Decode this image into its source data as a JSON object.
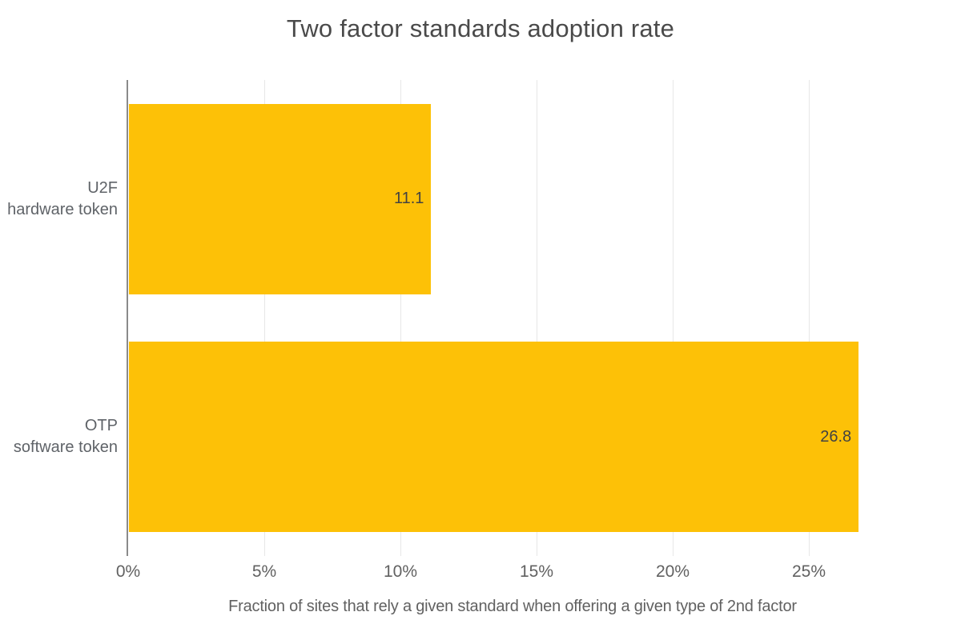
{
  "chart_data": {
    "type": "bar",
    "orientation": "horizontal",
    "title": "Two factor standards adoption rate",
    "categories": [
      "U2F\nhardware token",
      "OTP\nsoftware token"
    ],
    "values": [
      11.1,
      26.8
    ],
    "value_labels": [
      "11.1",
      "26.8"
    ],
    "xlabel": "Fraction of sites that rely a given standard when offering a given type of 2nd factor",
    "x_ticks": [
      {
        "v": 0,
        "label": "0%"
      },
      {
        "v": 5,
        "label": "5%"
      },
      {
        "v": 10,
        "label": "10%"
      },
      {
        "v": 15,
        "label": "15%"
      },
      {
        "v": 20,
        "label": "20%"
      },
      {
        "v": 25,
        "label": "25%"
      }
    ],
    "xlim": [
      0,
      30
    ],
    "grid": true,
    "legend": "none",
    "colors": {
      "bar": "#FDC107",
      "gridline": "#e7e7e7",
      "axis_line": "#8a8a8a",
      "title_text": "#4a4a4a",
      "label_text": "#5f6368",
      "tick_text": "#616161",
      "value_text": "#424242",
      "background": "#ffffff"
    }
  }
}
